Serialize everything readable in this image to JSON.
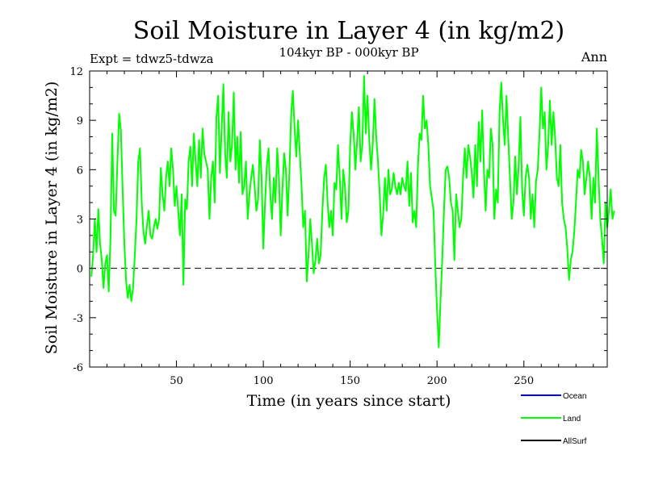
{
  "chart_data": {
    "type": "line",
    "title": "Soil Moisture in Layer 4 (in kg/m2)",
    "subtitle": "104kyr BP - 000kyr BP",
    "left_label": "Expt = tdwz5-tdwza",
    "right_label": "Ann",
    "xlabel": "Time (in years since start)",
    "ylabel": "Soil Moisture in Layer 4 (in kg/m2)",
    "xlim": [
      0,
      298
    ],
    "ylim": [
      -6,
      12
    ],
    "x_ticks": [
      50,
      100,
      150,
      200,
      250
    ],
    "y_ticks": [
      -6,
      -3,
      0,
      3,
      6,
      9,
      12
    ],
    "zero_line": "dashed",
    "legend_position": "bottom-right",
    "legend": [
      {
        "name": "Ocean",
        "color": "#0000ff"
      },
      {
        "name": "Land",
        "color": "#00ff00"
      },
      {
        "name": "AllSurf",
        "color": "#000000"
      }
    ],
    "series": [
      {
        "name": "Land",
        "color": "#00ff00",
        "x_start": 1,
        "x_step": 1,
        "values": [
          -0.5,
          0.8,
          3.0,
          1.0,
          3.6,
          1.5,
          0.5,
          -1.2,
          0.3,
          0.8,
          -1.4,
          1.8,
          8.2,
          3.5,
          3.2,
          6.5,
          9.4,
          8.4,
          4.8,
          1.5,
          -0.8,
          -1.8,
          -1.0,
          -2.0,
          -1.2,
          0.8,
          3.0,
          6.5,
          7.3,
          4.0,
          2.2,
          1.5,
          2.6,
          3.5,
          2.0,
          1.8,
          2.5,
          3.0,
          2.4,
          3.0,
          6.1,
          4.5,
          3.5,
          5.5,
          6.5,
          5.0,
          7.3,
          6.0,
          3.8,
          5.0,
          3.5,
          2.0,
          4.5,
          -1.0,
          4.2,
          3.6,
          6.5,
          7.4,
          5.0,
          8.2,
          6.5,
          5.0,
          7.8,
          5.5,
          8.5,
          7.0,
          6.5,
          6.0,
          3.0,
          5.5,
          6.5,
          4.0,
          9.2,
          10.5,
          5.8,
          8.5,
          11.2,
          7.0,
          5.5,
          9.5,
          6.5,
          7.5,
          10.7,
          6.0,
          8.0,
          5.2,
          8.3,
          4.5,
          5.0,
          6.5,
          3.0,
          4.5,
          5.5,
          6.3,
          5.0,
          3.5,
          4.2,
          7.8,
          5.5,
          1.2,
          4.0,
          6.2,
          7.3,
          4.5,
          3.0,
          5.5,
          4.0,
          7.3,
          5.5,
          2.0,
          4.8,
          7.0,
          6.0,
          3.2,
          5.8,
          9.3,
          10.8,
          8.5,
          6.8,
          9.0,
          7.0,
          5.0,
          2.5,
          3.5,
          -0.8,
          0.8,
          3.0,
          1.5,
          -0.3,
          0.5,
          1.8,
          0.3,
          0.8,
          3.5,
          5.5,
          6.3,
          4.0,
          2.5,
          3.5,
          2.0,
          5.2,
          4.8,
          7.5,
          5.5,
          3.0,
          6.0,
          5.0,
          2.8,
          3.5,
          7.5,
          9.5,
          8.2,
          6.0,
          7.8,
          9.8,
          6.5,
          7.5,
          11.7,
          8.2,
          10.5,
          7.8,
          6.0,
          7.5,
          10.3,
          8.0,
          6.5,
          4.5,
          2.0,
          3.3,
          5.5,
          3.5,
          6.0,
          4.5,
          4.8,
          5.8,
          5.0,
          4.5,
          5.2,
          4.5,
          5.5,
          5.0,
          4.7,
          6.5,
          3.8,
          5.8,
          2.8,
          3.5,
          2.5,
          6.2,
          8.2,
          7.8,
          10.5,
          8.5,
          9.0,
          7.5,
          5.0,
          4.3,
          3.5,
          0.2,
          -2.5,
          -4.8,
          -2.0,
          0.5,
          3.5,
          6.0,
          6.2,
          5.5,
          4.0,
          3.5,
          0.5,
          4.5,
          3.5,
          2.5,
          3.0,
          5.5,
          7.3,
          5.5,
          7.5,
          6.8,
          5.8,
          4.3,
          7.5,
          5.0,
          8.9,
          6.5,
          9.6,
          6.0,
          3.5,
          6.0,
          5.5,
          8.5,
          7.5,
          3.0,
          4.8,
          4.0,
          9.5,
          11.3,
          9.0,
          7.5,
          10.5,
          8.0,
          5.5,
          3.0,
          4.0,
          6.8,
          4.5,
          6.2,
          9.2,
          4.8,
          3.2,
          5.5,
          6.3,
          5.5,
          3.0,
          4.5,
          2.5,
          5.3,
          6.0,
          8.2,
          11.0,
          8.5,
          9.5,
          6.0,
          7.5,
          10.2,
          7.5,
          9.5,
          8.0,
          5.5,
          5.0,
          7.5,
          4.0,
          3.0,
          2.5,
          1.2,
          -0.7,
          0.5,
          1.0,
          2.2,
          4.0,
          6.0,
          5.5,
          7.2,
          6.5,
          4.5,
          5.5,
          6.5,
          5.5,
          3.0,
          5.5,
          4.0,
          8.5,
          5.5,
          3.0,
          1.8,
          0.3,
          4.0,
          2.5,
          3.5,
          4.8,
          3.0,
          3.5
        ]
      }
    ]
  }
}
